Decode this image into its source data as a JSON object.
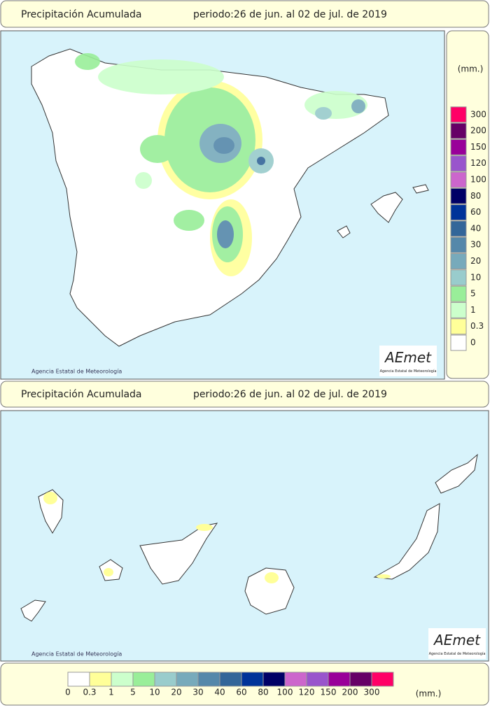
{
  "peninsula": {
    "header": {
      "title": "Precipitación Acumulada",
      "period": "periodo:26 de jun. al 02 de jul. de 2019"
    },
    "credit": "Agencia Estatal de Meteorología"
  },
  "canarias": {
    "header": {
      "title": "Precipitación Acumulada",
      "period": "periodo:26 de jun. al 02 de jul. de 2019"
    },
    "credit": "Agencia Estatal de Meteorología"
  },
  "logo": {
    "name": "AEmet",
    "subtitle": "Agencia Estatal de Meteorología"
  },
  "legend": {
    "unit": "(mm.)",
    "items": [
      {
        "label": "0",
        "color": "#ffffff"
      },
      {
        "label": "0.3",
        "color": "#ffff99"
      },
      {
        "label": "1",
        "color": "#ccffcc"
      },
      {
        "label": "5",
        "color": "#99ee99"
      },
      {
        "label": "10",
        "color": "#99cccc"
      },
      {
        "label": "20",
        "color": "#77aabb"
      },
      {
        "label": "30",
        "color": "#5588aa"
      },
      {
        "label": "40",
        "color": "#336699"
      },
      {
        "label": "60",
        "color": "#003399"
      },
      {
        "label": "80",
        "color": "#000066"
      },
      {
        "label": "100",
        "color": "#cc66cc"
      },
      {
        "label": "120",
        "color": "#9955cc"
      },
      {
        "label": "150",
        "color": "#990099"
      },
      {
        "label": "200",
        "color": "#660066"
      },
      {
        "label": "300",
        "color": "#ff0066"
      }
    ]
  }
}
